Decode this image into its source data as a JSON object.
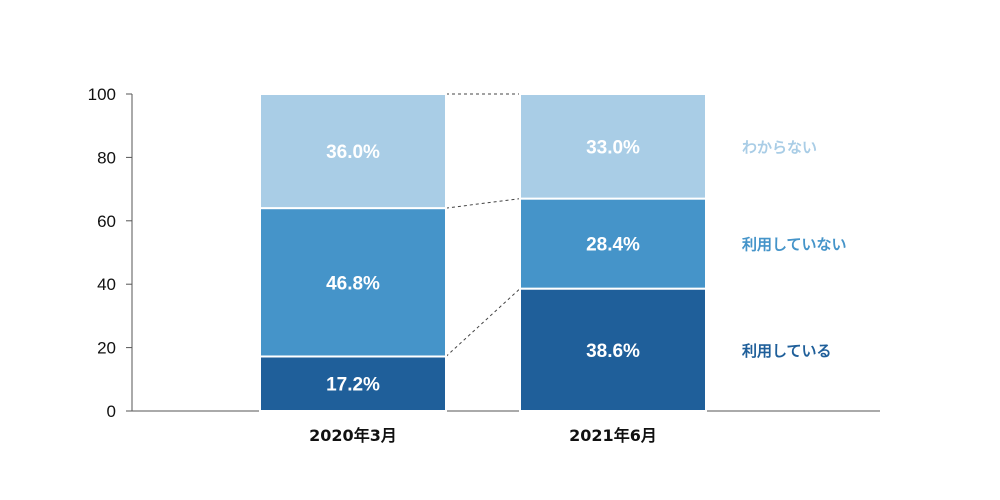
{
  "chart_data": {
    "type": "bar",
    "stacked": true,
    "categories": [
      "2020年3月",
      "2021年6月"
    ],
    "series": [
      {
        "name": "利用している",
        "values": [
          17.2,
          38.6
        ],
        "labels": [
          "17.2%",
          "38.6%"
        ],
        "color": "#1f5f9a"
      },
      {
        "name": "利用していない",
        "values": [
          46.8,
          28.4
        ],
        "labels": [
          "46.8%",
          "28.4%"
        ],
        "color": "#4594c9"
      },
      {
        "name": "わからない",
        "values": [
          36.0,
          33.0
        ],
        "labels": [
          "36.0%",
          "33.0%"
        ],
        "color": "#a9cde6"
      }
    ],
    "yticks": [
      "0",
      "20",
      "40",
      "60",
      "80",
      "100"
    ],
    "ylim": [
      0,
      100
    ],
    "grid": false,
    "legend_position": "right",
    "connector_lines": "dashed"
  }
}
